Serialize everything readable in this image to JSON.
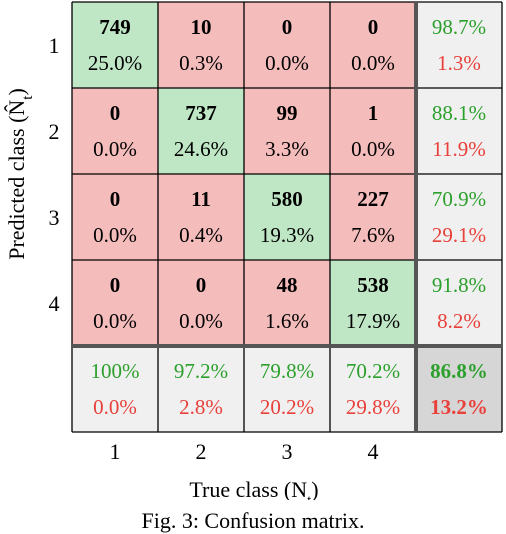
{
  "chart_data": {
    "type": "table",
    "subtype": "confusion-matrix",
    "xlabel": "True class (N",
    "xlabel_sub": "t",
    "xlabel_close": ")",
    "ylabel": "Predicted class (N̂",
    "ylabel_sub": "t",
    "ylabel_close": ")",
    "row_labels": [
      "1",
      "2",
      "3",
      "4"
    ],
    "col_labels": [
      "1",
      "2",
      "3",
      "4"
    ],
    "cells": [
      [
        {
          "count": "749",
          "pct": "25.0%"
        },
        {
          "count": "10",
          "pct": "0.3%"
        },
        {
          "count": "0",
          "pct": "0.0%"
        },
        {
          "count": "0",
          "pct": "0.0%"
        }
      ],
      [
        {
          "count": "0",
          "pct": "0.0%"
        },
        {
          "count": "737",
          "pct": "24.6%"
        },
        {
          "count": "99",
          "pct": "3.3%"
        },
        {
          "count": "1",
          "pct": "0.0%"
        }
      ],
      [
        {
          "count": "0",
          "pct": "0.0%"
        },
        {
          "count": "11",
          "pct": "0.4%"
        },
        {
          "count": "580",
          "pct": "19.3%"
        },
        {
          "count": "227",
          "pct": "7.6%"
        }
      ],
      [
        {
          "count": "0",
          "pct": "0.0%"
        },
        {
          "count": "0",
          "pct": "0.0%"
        },
        {
          "count": "48",
          "pct": "1.6%"
        },
        {
          "count": "538",
          "pct": "17.9%"
        }
      ]
    ],
    "row_summary": [
      {
        "correct": "98.7%",
        "wrong": "1.3%"
      },
      {
        "correct": "88.1%",
        "wrong": "11.9%"
      },
      {
        "correct": "70.9%",
        "wrong": "29.1%"
      },
      {
        "correct": "91.8%",
        "wrong": "8.2%"
      }
    ],
    "col_summary": [
      {
        "correct": "100%",
        "wrong": "0.0%"
      },
      {
        "correct": "97.2%",
        "wrong": "2.8%"
      },
      {
        "correct": "79.8%",
        "wrong": "20.2%"
      },
      {
        "correct": "70.2%",
        "wrong": "29.8%"
      }
    ],
    "overall": {
      "correct": "86.8%",
      "wrong": "13.2%"
    }
  },
  "caption": "Fig. 3: Confusion matrix.",
  "colors": {
    "diag": "#bfe6c5",
    "offdiag": "#f5bcbc",
    "summary": "#f0f0f0",
    "overall": "#d6d6d6",
    "green_text": "#2ca02c",
    "red_text": "#e8403a",
    "grid": "#000000",
    "separator": "#555555"
  }
}
